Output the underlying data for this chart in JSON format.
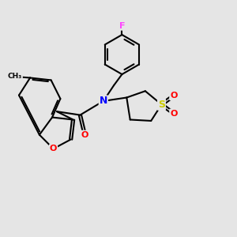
{
  "background_color": "#e5e5e5",
  "atom_colors": {
    "N": "#0000ff",
    "O": "#ff0000",
    "S": "#cccc00",
    "F": "#ff44ff",
    "C": "#000000"
  },
  "bond_color": "#000000",
  "bond_width": 1.5
}
